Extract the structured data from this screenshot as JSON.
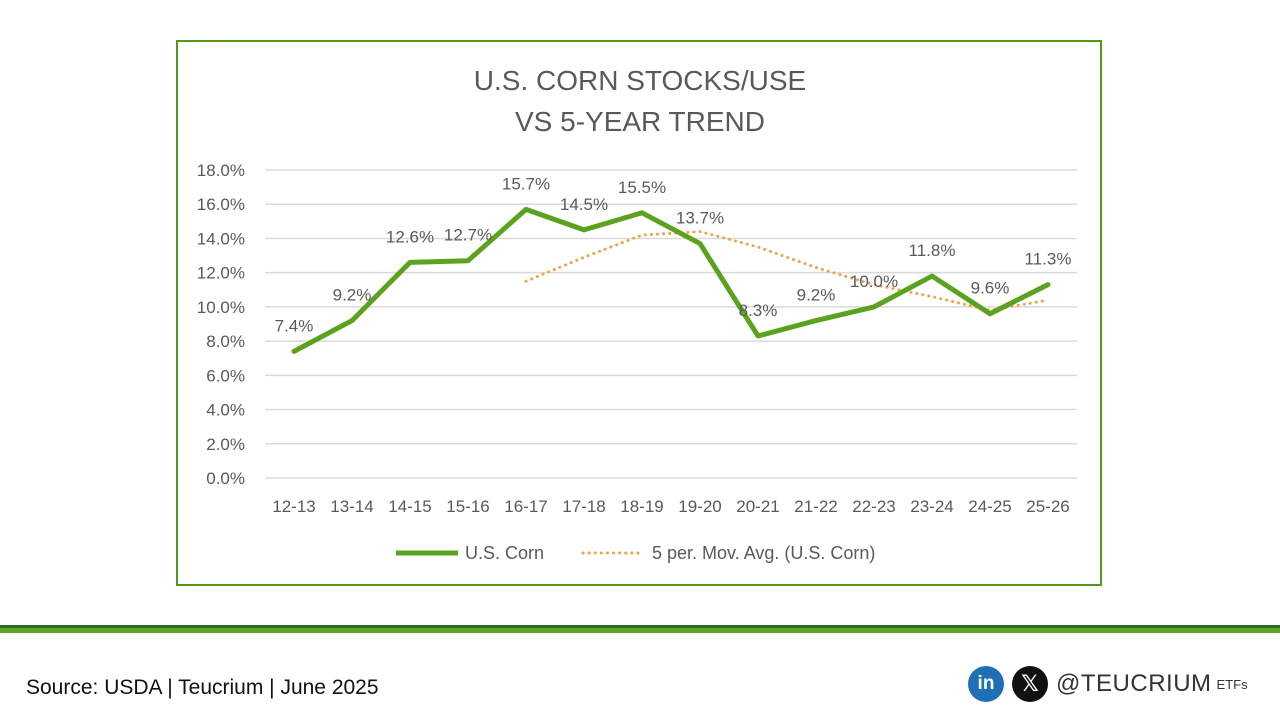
{
  "chart_data": {
    "type": "line",
    "title": [
      "U.S. CORN STOCKS/USE",
      "VS 5-YEAR TREND"
    ],
    "categories": [
      "12-13",
      "13-14",
      "14-15",
      "15-16",
      "16-17",
      "17-18",
      "18-19",
      "19-20",
      "20-21",
      "21-22",
      "22-23",
      "23-24",
      "24-25",
      "25-26"
    ],
    "y_ticks": [
      "0.0%",
      "2.0%",
      "4.0%",
      "6.0%",
      "8.0%",
      "10.0%",
      "12.0%",
      "14.0%",
      "16.0%",
      "18.0%"
    ],
    "ylim": [
      0,
      18
    ],
    "grid": true,
    "legend_position": "bottom",
    "series": [
      {
        "name": "U.S. Corn",
        "style": "solid",
        "color": "#5ba21e",
        "values": [
          7.4,
          9.2,
          12.6,
          12.7,
          15.7,
          14.5,
          15.5,
          13.7,
          8.3,
          9.2,
          10.0,
          11.8,
          9.6,
          11.3
        ],
        "data_labels": [
          "7.4%",
          "9.2%",
          "12.6%",
          "12.7%",
          "15.7%",
          "14.5%",
          "15.5%",
          "13.7%",
          "8.3%",
          "9.2%",
          "10.0%",
          "11.8%",
          "9.6%",
          "11.3%"
        ]
      },
      {
        "name": "5 per. Mov. Avg. (U.S. Corn)",
        "style": "dotted",
        "color": "#f5a04a",
        "values": [
          null,
          null,
          null,
          null,
          11.5,
          12.9,
          14.2,
          14.4,
          13.5,
          12.3,
          11.3,
          10.6,
          9.8,
          10.4
        ]
      }
    ]
  },
  "footer": {
    "source": "Source: USDA | Teucrium | June 2025",
    "linkedin_glyph": "in",
    "x_glyph": "𝕏",
    "handle": "@TEUCRIUM",
    "handle_suffix": "ETFs"
  }
}
